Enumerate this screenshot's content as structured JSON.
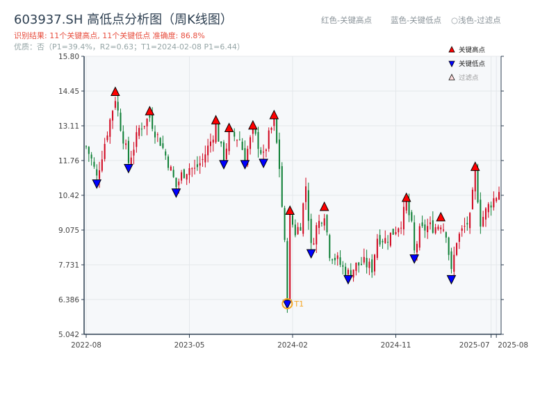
{
  "title": "603937.SH 高低点分析图（周K线图）",
  "summary": "识别结果: 11个关键高点, 11个关键低点  准确度: 86.8%",
  "quality": "优质：否（P1=39.4%，R2=0.63；T1=2024-02-08 P1=6.44）",
  "hints": [
    "红色-关键高点",
    "蓝色-关键低点",
    "○浅色-过滤点"
  ],
  "colors": {
    "up": "#d0021b",
    "down": "#0a7d32",
    "high": "#ff0000",
    "low": "#0000ff",
    "t1": "#f5a623",
    "grid": "#e4e7eb",
    "bg": "#f6f8fa"
  },
  "chart_data": {
    "type": "candlestick",
    "title": "603937.SH 高低点分析图（周K线图）",
    "ylim": [
      5.042,
      15.8
    ],
    "yticks": [
      "15.80",
      "14.45",
      "13.11",
      "11.76",
      "10.42",
      "9.075",
      "7.731",
      "6.386",
      "5.042"
    ],
    "weeks": 157,
    "xticks": [
      {
        "week": 0,
        "label": "2022-08"
      },
      {
        "week": 39,
        "label": "2023-05"
      },
      {
        "week": 78,
        "label": "2024-02"
      },
      {
        "week": 117,
        "label": "2024-11"
      },
      {
        "week": 153,
        "label": "2025-07"
      },
      {
        "week": 155,
        "label": "2025-08"
      }
    ],
    "close_waypoints": [
      [
        0,
        12.3
      ],
      [
        2,
        11.8
      ],
      [
        4,
        11.1
      ],
      [
        6,
        12.0
      ],
      [
        8,
        12.9
      ],
      [
        11,
        14.2
      ],
      [
        13,
        13.1
      ],
      [
        15,
        12.2
      ],
      [
        16,
        11.7
      ],
      [
        18,
        12.3
      ],
      [
        20,
        13.0
      ],
      [
        24,
        13.45
      ],
      [
        26,
        12.9
      ],
      [
        28,
        12.5
      ],
      [
        31,
        11.7
      ],
      [
        34,
        10.75
      ],
      [
        36,
        11.2
      ],
      [
        39,
        11.5
      ],
      [
        41,
        11.4
      ],
      [
        44,
        11.8
      ],
      [
        47,
        12.5
      ],
      [
        49,
        13.1
      ],
      [
        51,
        12.2
      ],
      [
        52,
        11.85
      ],
      [
        54,
        12.8
      ],
      [
        56,
        12.7
      ],
      [
        58,
        12.6
      ],
      [
        60,
        11.85
      ],
      [
        63,
        12.9
      ],
      [
        65,
        12.4
      ],
      [
        67,
        11.9
      ],
      [
        69,
        12.7
      ],
      [
        71,
        13.3
      ],
      [
        73,
        11.5
      ],
      [
        75,
        8.5
      ],
      [
        76,
        6.44
      ],
      [
        77,
        9.6
      ],
      [
        79,
        9.0
      ],
      [
        81,
        9.3
      ],
      [
        83,
        10.8
      ],
      [
        85,
        8.4
      ],
      [
        87,
        9.2
      ],
      [
        90,
        9.75
      ],
      [
        92,
        8.2
      ],
      [
        95,
        7.9
      ],
      [
        97,
        7.6
      ],
      [
        99,
        7.4
      ],
      [
        102,
        7.7
      ],
      [
        105,
        7.8
      ],
      [
        108,
        7.6
      ],
      [
        110,
        8.8
      ],
      [
        113,
        8.7
      ],
      [
        116,
        9.0
      ],
      [
        119,
        9.4
      ],
      [
        121,
        10.1
      ],
      [
        123,
        9.2
      ],
      [
        124,
        8.2
      ],
      [
        126,
        9.0
      ],
      [
        129,
        9.2
      ],
      [
        132,
        9.2
      ],
      [
        134,
        9.35
      ],
      [
        136,
        9.0
      ],
      [
        138,
        7.4
      ],
      [
        140,
        8.7
      ],
      [
        143,
        9.2
      ],
      [
        145,
        9.5
      ],
      [
        147,
        11.3
      ],
      [
        149,
        9.4
      ],
      [
        152,
        10.0
      ],
      [
        155,
        10.42
      ],
      [
        156,
        10.6
      ]
    ],
    "key_highs": [
      [
        11,
        14.2
      ],
      [
        24,
        13.45
      ],
      [
        49,
        13.1
      ],
      [
        54,
        12.8
      ],
      [
        63,
        12.9
      ],
      [
        71,
        13.3
      ],
      [
        77,
        9.6
      ],
      [
        90,
        9.75
      ],
      [
        121,
        10.1
      ],
      [
        134,
        9.35
      ],
      [
        147,
        11.3
      ]
    ],
    "key_lows": [
      [
        4,
        11.1
      ],
      [
        16,
        11.7
      ],
      [
        34,
        10.75
      ],
      [
        52,
        11.85
      ],
      [
        60,
        11.85
      ],
      [
        67,
        11.9
      ],
      [
        76,
        6.44
      ],
      [
        85,
        8.4
      ],
      [
        99,
        7.4
      ],
      [
        124,
        8.2
      ],
      [
        138,
        7.4
      ]
    ],
    "t1": {
      "week": 76,
      "price": 6.44,
      "label": "T1"
    },
    "legend": {
      "position": "top-right",
      "items": [
        "关键高点",
        "关键低点",
        "过滤点"
      ]
    }
  }
}
